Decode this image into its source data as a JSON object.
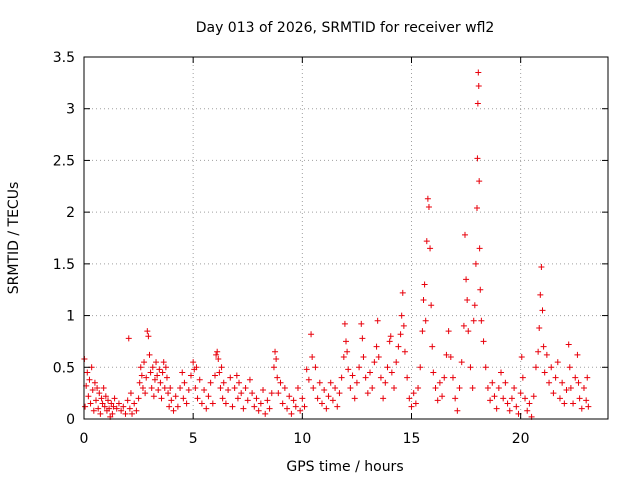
{
  "chart_data": {
    "type": "scatter",
    "title": "Day 013 of 2026, SRMTID for receiver wfl2",
    "xlabel": "GPS time / hours",
    "ylabel": "SRMTID / TECUs",
    "xlim": [
      0,
      24
    ],
    "ylim": [
      0,
      3.5
    ],
    "x_ticks": [
      0,
      5,
      10,
      15,
      20
    ],
    "y_ticks": [
      0,
      0.5,
      1,
      1.5,
      2,
      2.5,
      3,
      3.5
    ],
    "x_tick_labels": [
      "0",
      "5",
      "10",
      "15",
      "20"
    ],
    "y_tick_labels": [
      "0",
      "0.5",
      "1",
      "1.5",
      "2",
      "2.5",
      "3",
      "3.5"
    ],
    "grid": true,
    "marker": "+",
    "color": "#e8000b",
    "series": [
      {
        "name": "SRMTID",
        "points": [
          [
            0.02,
            0.58
          ],
          [
            0.05,
            0.12
          ],
          [
            0.1,
            0.32
          ],
          [
            0.15,
            0.45
          ],
          [
            0.2,
            0.22
          ],
          [
            0.25,
            0.38
          ],
          [
            0.3,
            0.15
          ],
          [
            0.35,
            0.5
          ],
          [
            0.4,
            0.28
          ],
          [
            0.45,
            0.08
          ],
          [
            0.5,
            0.35
          ],
          [
            0.55,
            0.18
          ],
          [
            0.6,
            0.3
          ],
          [
            0.65,
            0.1
          ],
          [
            0.7,
            0.25
          ],
          [
            0.75,
            0.05
          ],
          [
            0.8,
            0.2
          ],
          [
            0.85,
            0.15
          ],
          [
            0.9,
            0.3
          ],
          [
            0.95,
            0.12
          ],
          [
            1.0,
            0.22
          ],
          [
            1.05,
            0.08
          ],
          [
            1.1,
            0.18
          ],
          [
            1.15,
            0.1
          ],
          [
            1.2,
            0.02
          ],
          [
            1.25,
            0.15
          ],
          [
            1.3,
            0.05
          ],
          [
            1.35,
            0.12
          ],
          [
            1.4,
            0.2
          ],
          [
            1.5,
            0.1
          ],
          [
            1.6,
            0.15
          ],
          [
            1.7,
            0.08
          ],
          [
            1.8,
            0.12
          ],
          [
            1.9,
            0.05
          ],
          [
            2.0,
            0.18
          ],
          [
            2.05,
            0.78
          ],
          [
            2.1,
            0.1
          ],
          [
            2.15,
            0.25
          ],
          [
            2.2,
            0.05
          ],
          [
            2.3,
            0.15
          ],
          [
            2.4,
            0.08
          ],
          [
            2.5,
            0.2
          ],
          [
            2.55,
            0.35
          ],
          [
            2.6,
            0.5
          ],
          [
            2.65,
            0.42
          ],
          [
            2.7,
            0.3
          ],
          [
            2.75,
            0.55
          ],
          [
            2.8,
            0.25
          ],
          [
            2.85,
            0.4
          ],
          [
            2.9,
            0.85
          ],
          [
            2.95,
            0.8
          ],
          [
            3.0,
            0.62
          ],
          [
            3.05,
            0.45
          ],
          [
            3.1,
            0.3
          ],
          [
            3.15,
            0.5
          ],
          [
            3.2,
            0.22
          ],
          [
            3.25,
            0.38
          ],
          [
            3.3,
            0.55
          ],
          [
            3.35,
            0.42
          ],
          [
            3.4,
            0.28
          ],
          [
            3.45,
            0.48
          ],
          [
            3.5,
            0.35
          ],
          [
            3.55,
            0.2
          ],
          [
            3.6,
            0.45
          ],
          [
            3.65,
            0.55
          ],
          [
            3.7,
            0.3
          ],
          [
            3.75,
            0.5
          ],
          [
            3.8,
            0.4
          ],
          [
            3.85,
            0.25
          ],
          [
            3.9,
            0.12
          ],
          [
            3.95,
            0.3
          ],
          [
            4.0,
            0.18
          ],
          [
            4.1,
            0.08
          ],
          [
            4.2,
            0.22
          ],
          [
            4.3,
            0.12
          ],
          [
            4.4,
            0.3
          ],
          [
            4.5,
            0.45
          ],
          [
            4.55,
            0.2
          ],
          [
            4.6,
            0.35
          ],
          [
            4.7,
            0.15
          ],
          [
            4.8,
            0.28
          ],
          [
            4.9,
            0.42
          ],
          [
            5.0,
            0.55
          ],
          [
            5.05,
            0.48
          ],
          [
            5.1,
            0.3
          ],
          [
            5.15,
            0.5
          ],
          [
            5.2,
            0.2
          ],
          [
            5.3,
            0.38
          ],
          [
            5.4,
            0.15
          ],
          [
            5.5,
            0.28
          ],
          [
            5.6,
            0.1
          ],
          [
            5.7,
            0.22
          ],
          [
            5.8,
            0.35
          ],
          [
            5.9,
            0.15
          ],
          [
            6.0,
            0.42
          ],
          [
            6.05,
            0.62
          ],
          [
            6.1,
            0.65
          ],
          [
            6.15,
            0.58
          ],
          [
            6.2,
            0.45
          ],
          [
            6.25,
            0.3
          ],
          [
            6.3,
            0.5
          ],
          [
            6.35,
            0.2
          ],
          [
            6.4,
            0.35
          ],
          [
            6.5,
            0.15
          ],
          [
            6.6,
            0.28
          ],
          [
            6.7,
            0.4
          ],
          [
            6.8,
            0.12
          ],
          [
            6.9,
            0.3
          ],
          [
            7.0,
            0.42
          ],
          [
            7.05,
            0.2
          ],
          [
            7.1,
            0.35
          ],
          [
            7.2,
            0.25
          ],
          [
            7.3,
            0.1
          ],
          [
            7.4,
            0.3
          ],
          [
            7.5,
            0.18
          ],
          [
            7.6,
            0.38
          ],
          [
            7.7,
            0.25
          ],
          [
            7.8,
            0.12
          ],
          [
            7.9,
            0.2
          ],
          [
            8.0,
            0.08
          ],
          [
            8.1,
            0.15
          ],
          [
            8.2,
            0.28
          ],
          [
            8.3,
            0.05
          ],
          [
            8.4,
            0.18
          ],
          [
            8.5,
            0.1
          ],
          [
            8.6,
            0.25
          ],
          [
            8.7,
            0.5
          ],
          [
            8.75,
            0.65
          ],
          [
            8.8,
            0.58
          ],
          [
            8.85,
            0.4
          ],
          [
            8.9,
            0.25
          ],
          [
            9.0,
            0.35
          ],
          [
            9.1,
            0.15
          ],
          [
            9.2,
            0.3
          ],
          [
            9.3,
            0.1
          ],
          [
            9.4,
            0.22
          ],
          [
            9.5,
            0.05
          ],
          [
            9.6,
            0.18
          ],
          [
            9.7,
            0.12
          ],
          [
            9.8,
            0.3
          ],
          [
            9.9,
            0.08
          ],
          [
            10.0,
            0.2
          ],
          [
            10.1,
            0.12
          ],
          [
            10.2,
            0.48
          ],
          [
            10.3,
            0.38
          ],
          [
            10.4,
            0.82
          ],
          [
            10.45,
            0.6
          ],
          [
            10.5,
            0.3
          ],
          [
            10.6,
            0.5
          ],
          [
            10.7,
            0.2
          ],
          [
            10.8,
            0.35
          ],
          [
            10.9,
            0.15
          ],
          [
            11.0,
            0.28
          ],
          [
            11.1,
            0.1
          ],
          [
            11.2,
            0.22
          ],
          [
            11.3,
            0.35
          ],
          [
            11.4,
            0.18
          ],
          [
            11.5,
            0.3
          ],
          [
            11.6,
            0.12
          ],
          [
            11.7,
            0.25
          ],
          [
            11.8,
            0.4
          ],
          [
            11.9,
            0.6
          ],
          [
            11.95,
            0.92
          ],
          [
            12.0,
            0.75
          ],
          [
            12.05,
            0.65
          ],
          [
            12.1,
            0.48
          ],
          [
            12.2,
            0.3
          ],
          [
            12.3,
            0.42
          ],
          [
            12.4,
            0.2
          ],
          [
            12.5,
            0.35
          ],
          [
            12.6,
            0.5
          ],
          [
            12.7,
            0.92
          ],
          [
            12.75,
            0.78
          ],
          [
            12.8,
            0.6
          ],
          [
            12.9,
            0.4
          ],
          [
            13.0,
            0.25
          ],
          [
            13.1,
            0.45
          ],
          [
            13.2,
            0.3
          ],
          [
            13.3,
            0.55
          ],
          [
            13.4,
            0.7
          ],
          [
            13.45,
            0.95
          ],
          [
            13.5,
            0.6
          ],
          [
            13.6,
            0.4
          ],
          [
            13.7,
            0.2
          ],
          [
            13.8,
            0.35
          ],
          [
            13.9,
            0.5
          ],
          [
            14.0,
            0.75
          ],
          [
            14.05,
            0.8
          ],
          [
            14.1,
            0.45
          ],
          [
            14.2,
            0.3
          ],
          [
            14.3,
            0.55
          ],
          [
            14.4,
            0.7
          ],
          [
            14.5,
            0.82
          ],
          [
            14.55,
            1.0
          ],
          [
            14.6,
            1.22
          ],
          [
            14.65,
            0.9
          ],
          [
            14.7,
            0.65
          ],
          [
            14.8,
            0.4
          ],
          [
            14.9,
            0.2
          ],
          [
            15.0,
            0.12
          ],
          [
            15.1,
            0.25
          ],
          [
            15.2,
            0.15
          ],
          [
            15.3,
            0.3
          ],
          [
            15.4,
            0.5
          ],
          [
            15.5,
            0.85
          ],
          [
            15.55,
            1.15
          ],
          [
            15.6,
            1.3
          ],
          [
            15.65,
            0.95
          ],
          [
            15.7,
            1.72
          ],
          [
            15.75,
            2.13
          ],
          [
            15.8,
            2.05
          ],
          [
            15.85,
            1.65
          ],
          [
            15.9,
            1.1
          ],
          [
            15.95,
            0.7
          ],
          [
            16.0,
            0.45
          ],
          [
            16.1,
            0.3
          ],
          [
            16.2,
            0.18
          ],
          [
            16.3,
            0.35
          ],
          [
            16.4,
            0.22
          ],
          [
            16.5,
            0.4
          ],
          [
            16.6,
            0.62
          ],
          [
            16.7,
            0.85
          ],
          [
            16.8,
            0.6
          ],
          [
            16.9,
            0.4
          ],
          [
            17.0,
            0.2
          ],
          [
            17.1,
            0.08
          ],
          [
            17.2,
            0.3
          ],
          [
            17.3,
            0.55
          ],
          [
            17.4,
            0.9
          ],
          [
            17.45,
            1.78
          ],
          [
            17.5,
            1.35
          ],
          [
            17.55,
            1.15
          ],
          [
            17.6,
            0.85
          ],
          [
            17.7,
            0.5
          ],
          [
            17.8,
            0.3
          ],
          [
            17.85,
            0.95
          ],
          [
            17.9,
            1.1
          ],
          [
            17.95,
            1.5
          ],
          [
            18.0,
            2.04
          ],
          [
            18.02,
            2.52
          ],
          [
            18.04,
            3.05
          ],
          [
            18.06,
            3.35
          ],
          [
            18.08,
            3.22
          ],
          [
            18.1,
            2.3
          ],
          [
            18.12,
            1.65
          ],
          [
            18.15,
            1.25
          ],
          [
            18.2,
            0.95
          ],
          [
            18.3,
            0.75
          ],
          [
            18.4,
            0.5
          ],
          [
            18.5,
            0.3
          ],
          [
            18.6,
            0.18
          ],
          [
            18.7,
            0.35
          ],
          [
            18.8,
            0.22
          ],
          [
            18.9,
            0.1
          ],
          [
            19.0,
            0.3
          ],
          [
            19.1,
            0.45
          ],
          [
            19.2,
            0.2
          ],
          [
            19.3,
            0.35
          ],
          [
            19.4,
            0.15
          ],
          [
            19.5,
            0.08
          ],
          [
            19.6,
            0.2
          ],
          [
            19.7,
            0.3
          ],
          [
            19.8,
            0.12
          ],
          [
            19.9,
            0.05
          ],
          [
            20.0,
            0.25
          ],
          [
            20.05,
            0.6
          ],
          [
            20.1,
            0.4
          ],
          [
            20.2,
            0.2
          ],
          [
            20.3,
            0.08
          ],
          [
            20.4,
            0.15
          ],
          [
            20.5,
            0.02
          ],
          [
            20.6,
            0.22
          ],
          [
            20.7,
            0.5
          ],
          [
            20.8,
            0.65
          ],
          [
            20.85,
            0.88
          ],
          [
            20.9,
            1.2
          ],
          [
            20.95,
            1.47
          ],
          [
            21.0,
            1.05
          ],
          [
            21.05,
            0.7
          ],
          [
            21.1,
            0.45
          ],
          [
            21.2,
            0.62
          ],
          [
            21.3,
            0.35
          ],
          [
            21.4,
            0.5
          ],
          [
            21.5,
            0.25
          ],
          [
            21.6,
            0.4
          ],
          [
            21.7,
            0.55
          ],
          [
            21.8,
            0.2
          ],
          [
            21.9,
            0.35
          ],
          [
            22.0,
            0.15
          ],
          [
            22.1,
            0.28
          ],
          [
            22.2,
            0.72
          ],
          [
            22.25,
            0.5
          ],
          [
            22.3,
            0.3
          ],
          [
            22.4,
            0.15
          ],
          [
            22.5,
            0.4
          ],
          [
            22.6,
            0.62
          ],
          [
            22.65,
            0.35
          ],
          [
            22.7,
            0.2
          ],
          [
            22.8,
            0.1
          ],
          [
            22.9,
            0.3
          ],
          [
            23.0,
            0.18
          ],
          [
            23.05,
            0.4
          ],
          [
            23.1,
            0.12
          ]
        ]
      }
    ]
  }
}
